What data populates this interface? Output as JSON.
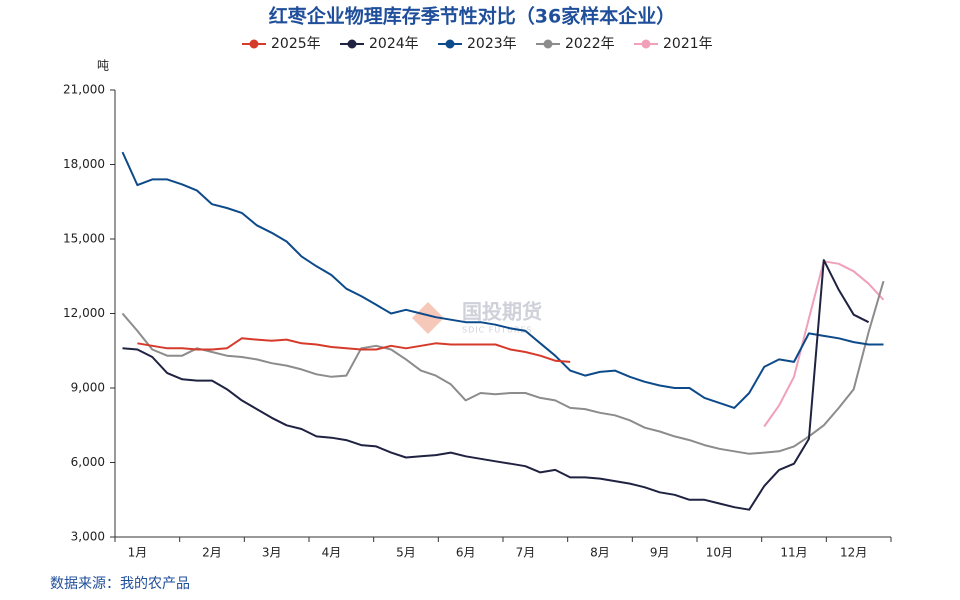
{
  "chart_data": {
    "type": "line",
    "title": "红枣企业物理库存季节性对比（36家样本企业）",
    "y_label": "吨",
    "source": "数据来源：我的农产品",
    "watermark": "国投期货",
    "watermark_sub": "SDIC FUTURES",
    "categories": [
      null,
      "1月",
      null,
      null,
      null,
      null,
      "2月",
      null,
      null,
      null,
      "3月",
      null,
      null,
      null,
      "4月",
      null,
      null,
      null,
      null,
      "5月",
      null,
      null,
      null,
      "6月",
      null,
      null,
      null,
      "7月",
      null,
      null,
      null,
      null,
      "8月",
      null,
      null,
      null,
      "9月",
      null,
      null,
      null,
      "10月",
      null,
      null,
      null,
      null,
      "11月",
      null,
      null,
      null,
      "12月",
      null,
      null
    ],
    "ylim": [
      3000,
      21000
    ],
    "yticks": [
      {
        "value": 3000,
        "label": "3,000"
      },
      {
        "value": 6000,
        "label": "6,000"
      },
      {
        "value": 9000,
        "label": "9,000"
      },
      {
        "value": 12000,
        "label": "12,000"
      },
      {
        "value": 15000,
        "label": "15,000"
      },
      {
        "value": 18000,
        "label": "18,000"
      },
      {
        "value": 21000,
        "label": "21,000"
      }
    ],
    "grid": false,
    "legend": "top",
    "series": [
      {
        "name": "2025年",
        "color": "#d63a2a",
        "values": [
          null,
          10800,
          10700,
          10600,
          10600,
          10550,
          10550,
          10600,
          11000,
          10950,
          10900,
          10950,
          10800,
          10750,
          10650,
          10600,
          10550,
          10550,
          10700,
          10600,
          10700,
          10800,
          10750,
          10750,
          10750,
          10750,
          10550,
          10450,
          10300,
          10100,
          10050,
          null,
          null,
          null,
          null,
          null,
          null,
          null,
          null,
          null,
          null,
          null,
          null,
          null,
          null,
          null,
          null,
          null,
          null,
          null,
          null,
          null
        ]
      },
      {
        "name": "2024年",
        "color": "#1f2240",
        "values": [
          10600,
          10550,
          10250,
          9600,
          9350,
          9300,
          9300,
          8950,
          8500,
          8150,
          7800,
          7500,
          7350,
          7050,
          7000,
          6900,
          6700,
          6650,
          6400,
          6200,
          6250,
          6300,
          6400,
          6250,
          6150,
          6050,
          5950,
          5850,
          5600,
          5700,
          5400,
          5400,
          5350,
          5250,
          5150,
          5000,
          4800,
          4700,
          4500,
          4500,
          4350,
          4200,
          4100,
          5050,
          5700,
          5950,
          6950,
          14150,
          12950,
          11950,
          11650,
          null
        ]
      },
      {
        "name": "2023年",
        "color": "#0d4a8a",
        "values": [
          18500,
          17170,
          17400,
          17400,
          17200,
          16950,
          16400,
          16250,
          16050,
          15550,
          15250,
          14900,
          14300,
          13900,
          13550,
          13000,
          12700,
          12350,
          12000,
          12150,
          12000,
          11850,
          11750,
          11650,
          11650,
          11550,
          11400,
          11300,
          10800,
          10300,
          9700,
          9500,
          9650,
          9700,
          9450,
          9250,
          9100,
          9000,
          9000,
          8600,
          8400,
          8200,
          8800,
          9850,
          10150,
          10050,
          11200,
          11100,
          11000,
          10850,
          10750,
          10750
        ]
      },
      {
        "name": "2022年",
        "color": "#8c8c8c",
        "values": [
          12000,
          11300,
          10550,
          10300,
          10300,
          10600,
          10450,
          10300,
          10250,
          10150,
          10000,
          9900,
          9750,
          9550,
          9450,
          9500,
          10600,
          10700,
          10550,
          10150,
          9700,
          9500,
          9150,
          8500,
          8800,
          8750,
          8800,
          8800,
          8600,
          8500,
          8200,
          8150,
          8000,
          7900,
          7700,
          7400,
          7250,
          7050,
          6900,
          6700,
          6550,
          6450,
          6350,
          6400,
          6450,
          6650,
          7050,
          7500,
          8200,
          8950,
          11250,
          13300
        ]
      },
      {
        "name": "2021年",
        "color": "#f0a0b8",
        "values": [
          null,
          null,
          null,
          null,
          null,
          null,
          null,
          null,
          null,
          null,
          null,
          null,
          null,
          null,
          null,
          null,
          null,
          null,
          null,
          null,
          null,
          null,
          null,
          null,
          null,
          null,
          null,
          null,
          null,
          null,
          null,
          null,
          null,
          null,
          null,
          null,
          null,
          null,
          null,
          null,
          null,
          null,
          null,
          7450,
          8300,
          9450,
          11800,
          14100,
          14000,
          13700,
          13200,
          12550
        ]
      }
    ]
  }
}
